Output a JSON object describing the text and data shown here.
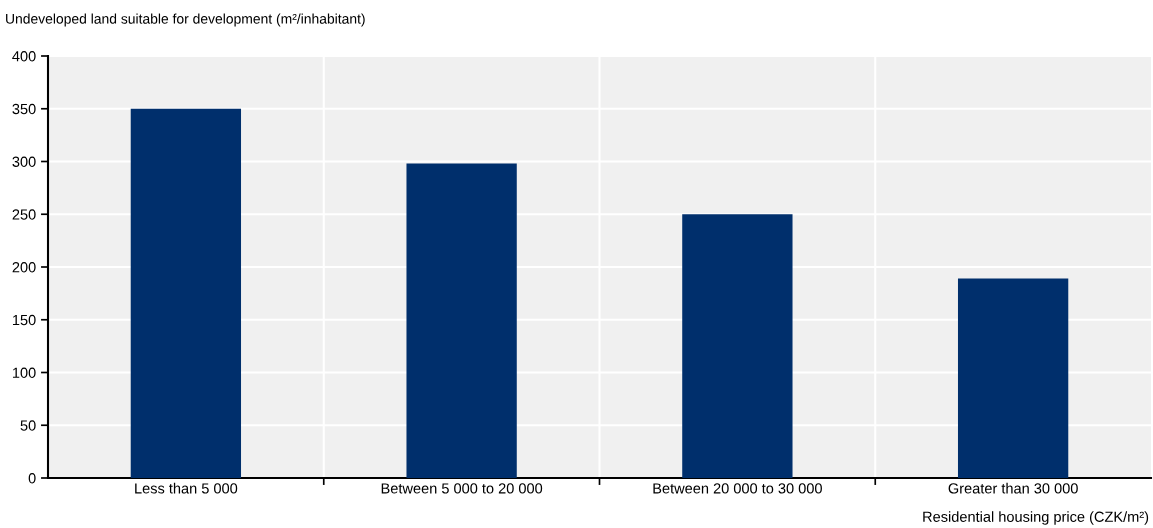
{
  "chart_data": {
    "type": "bar",
    "ylabel": "Undeveloped land suitable for development (m²/inhabitant)",
    "xlabel": "Residential housing price (CZK/m²)",
    "categories": [
      "Less than 5 000",
      "Between 5 000 to 20 000",
      "Between 20 000 to 30 000",
      "Greater than 30 000"
    ],
    "values": [
      350,
      298,
      250,
      189
    ],
    "color": "#002f6c",
    "ylim": [
      0,
      400
    ],
    "yticks": [
      0,
      50,
      100,
      150,
      200,
      250,
      300,
      350,
      400
    ],
    "grid": true
  }
}
